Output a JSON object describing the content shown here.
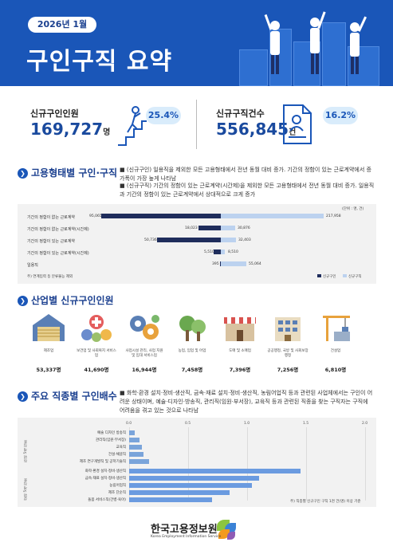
{
  "header": {
    "date": "2026년 1월",
    "title": "구인구직 요약"
  },
  "stats": {
    "new_job_openings": {
      "label": "신규구인인원",
      "value": "169,727",
      "unit": "명",
      "change": "25.4%"
    },
    "new_job_seekers": {
      "label": "신규구직건수",
      "value": "556,845",
      "unit": "건",
      "change": "16.2%"
    }
  },
  "employment_section": {
    "title": "고용형태별 구인·구직",
    "notes": [
      "(신규구인) 일용직을 제외한 모든 고용형태에서 전년 동월 대비 증가. 기간의 정함이 있는 근로계약에서 증가폭이 가장 높게 나타남",
      "(신규구직) 기간의 정함이 있는 근로계약(시간제)을 제외한 모든 고용형태에서 전년 동월 대비 증가. 일용직과 기간의 정함이 있는 근로계약에서 상대적으로 크게 증가"
    ],
    "unit": "(단위 : 명, 건)",
    "footnote": "주) 연계입력 등 분류불능 제외",
    "legend": [
      "신규구인",
      "신규구직"
    ],
    "rows": [
      {
        "label": "기간의 정함이 없는 근로계약",
        "openings": "95,065",
        "seekers": "217,958"
      },
      {
        "label": "기간의 정함이 없는 근로계약(시간제)",
        "openings": "18,023",
        "seekers": "30,876"
      },
      {
        "label": "기간의 정함이 있는 근로계약",
        "openings": "50,736",
        "seekers": "32,403"
      },
      {
        "label": "기간의 정함이 있는 근로계약(시간제)",
        "openings": "5,510",
        "seekers": "8,510"
      },
      {
        "label": "일용직",
        "openings": "395",
        "seekers": "55,064"
      }
    ]
  },
  "industry_section": {
    "title": "산업별 신규구인인원",
    "items": [
      {
        "name": "제조업",
        "value": "53,337명"
      },
      {
        "name": "보건업 및 사회복지 서비스업",
        "value": "41,690명"
      },
      {
        "name": "사업시설 관리, 사업 지원 및 임대 서비스업",
        "value": "16,944명"
      },
      {
        "name": "농업, 임업 및 어업",
        "value": "7,458명"
      },
      {
        "name": "도매 및 소매업",
        "value": "7,396명"
      },
      {
        "name": "공공행정, 국방 및 사회보장 행정",
        "value": "7,256명"
      },
      {
        "name": "건설업",
        "value": "6,810명"
      }
    ]
  },
  "occupation_section": {
    "title": "주요 직종별 구인배수",
    "note": "화학·환경 설치·정비·생산직, 금속·재료 설치·정비·생산직, 농림어업직 등과 관련된 사업체에서는 구인이 어려운 상태이며, 예술·디자인·방송직, 관리직(임원·부서장), 교육직 등과 관련된 직종을 찾는 구직자는 구직에 어려움을 겪고 있는 것으로 나타남",
    "footnote": "주) 직종별 신규구인 구직 1천 건(명) 이상 기준",
    "group_labels": [
      "하위 5개 직종",
      "상위 5개 직종"
    ]
  },
  "chart_data": {
    "type": "bar",
    "orientation": "horizontal",
    "xlim": [
      0,
      2.0
    ],
    "ticks": [
      "0.0",
      "0.5",
      "1.0",
      "1.5",
      "2.0"
    ],
    "categories": [
      "예술 디자인 방송직",
      "관리직(임원·부서장)",
      "교육직",
      "건설·채굴직",
      "제조 연구개발직 및 공학기술직",
      "화학·환경 설치·정비·생산직",
      "금속·재료 설치·정비·생산직",
      "농림어업직",
      "제조 단순직",
      "돌봄 서비스직(간병·육아)"
    ],
    "values": [
      0.05,
      0.09,
      0.11,
      0.12,
      0.17,
      1.45,
      1.1,
      1.04,
      0.85,
      0.7
    ],
    "colors": [
      "#7aa4da",
      "#7aa4da",
      "#7aa4da",
      "#7aa4da",
      "#7aa4da",
      "#6b9be0",
      "#6b9be0",
      "#6b9be0",
      "#6b9be0",
      "#6b9be0"
    ]
  },
  "footer": {
    "org": "한국고용정보원",
    "org_en": "Korea Employment Information Service"
  },
  "colors": {
    "brand": "#1a56b8",
    "dark_bar": "#1f2d5c",
    "light_bar": "#bcd2ef",
    "accent_badge": "#d9ecfb"
  }
}
